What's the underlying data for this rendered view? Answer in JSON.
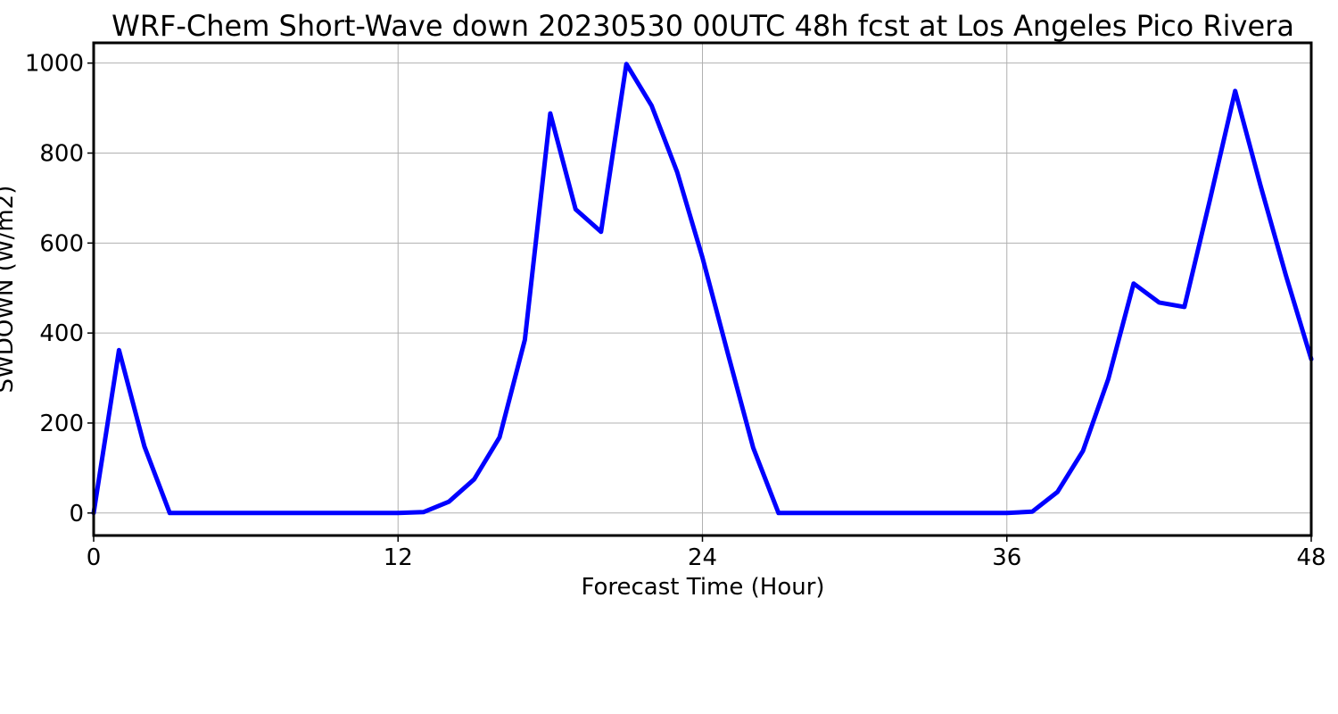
{
  "chart_data": {
    "type": "line",
    "title": "WRF-Chem Short-Wave down  20230530 00UTC 48h fcst at Los Angeles Pico Rivera",
    "xlabel": "Forecast Time (Hour)",
    "ylabel": "SWDOWN  (W/m2)",
    "xlim": [
      0,
      48
    ],
    "ylim": [
      -50,
      1045
    ],
    "xticks": [
      "0",
      "12",
      "24",
      "36",
      "48"
    ],
    "yticks": [
      "0",
      "200",
      "400",
      "600",
      "800",
      "1000"
    ],
    "grid": true,
    "series": [
      {
        "color": "#0000ff",
        "x": [
          0,
          1,
          2,
          3,
          4,
          5,
          6,
          7,
          8,
          9,
          10,
          11,
          12,
          13,
          14,
          15,
          16,
          17,
          18,
          19,
          20,
          21,
          22,
          23,
          24,
          25,
          26,
          27,
          28,
          29,
          30,
          31,
          32,
          33,
          34,
          35,
          36,
          37,
          38,
          39,
          40,
          41,
          42,
          43,
          44,
          45,
          46,
          47,
          48
        ],
        "values": [
          0,
          362,
          148,
          0,
          0,
          0,
          0,
          0,
          0,
          0,
          0,
          0,
          0,
          2,
          25,
          75,
          168,
          385,
          888,
          675,
          625,
          998,
          905,
          758,
          568,
          355,
          145,
          0,
          0,
          0,
          0,
          0,
          0,
          0,
          0,
          0,
          0,
          3,
          47,
          138,
          298,
          510,
          468,
          458,
          695,
          938,
          728,
          528,
          342
        ]
      }
    ]
  }
}
